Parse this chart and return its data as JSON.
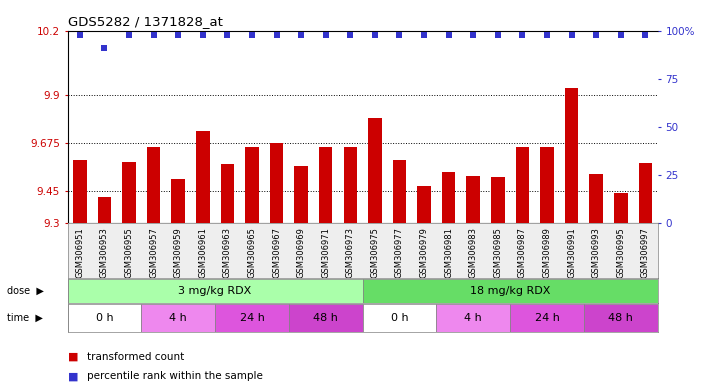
{
  "title": "GDS5282 / 1371828_at",
  "samples": [
    "GSM306951",
    "GSM306953",
    "GSM306955",
    "GSM306957",
    "GSM306959",
    "GSM306961",
    "GSM306963",
    "GSM306965",
    "GSM306967",
    "GSM306969",
    "GSM306971",
    "GSM306973",
    "GSM306975",
    "GSM306977",
    "GSM306979",
    "GSM306981",
    "GSM306983",
    "GSM306985",
    "GSM306987",
    "GSM306989",
    "GSM306991",
    "GSM306993",
    "GSM306995",
    "GSM306997"
  ],
  "bar_values": [
    9.595,
    9.42,
    9.585,
    9.655,
    9.505,
    9.73,
    9.575,
    9.655,
    9.675,
    9.565,
    9.655,
    9.655,
    9.79,
    9.595,
    9.47,
    9.54,
    9.52,
    9.515,
    9.655,
    9.655,
    9.93,
    9.53,
    9.44,
    9.58
  ],
  "percentile_values": [
    98,
    91,
    98,
    98,
    98,
    98,
    98,
    98,
    98,
    98,
    98,
    98,
    98,
    98,
    98,
    98,
    98,
    98,
    98,
    98,
    98,
    98,
    98,
    98
  ],
  "bar_color": "#cc0000",
  "dot_color": "#3333cc",
  "ylim": [
    9.3,
    10.2
  ],
  "yticks": [
    9.3,
    9.45,
    9.675,
    9.9,
    10.2
  ],
  "ytick_labels": [
    "9.3",
    "9.45",
    "9.675",
    "9.9",
    "10.2"
  ],
  "hlines": [
    9.45,
    9.675,
    9.9
  ],
  "right_ylim": [
    0,
    100
  ],
  "right_yticks": [
    0,
    25,
    50,
    75,
    100
  ],
  "right_ytick_labels": [
    "0",
    "25",
    "50",
    "75",
    "100%"
  ],
  "dose_labels": [
    {
      "text": "3 mg/kg RDX",
      "start": 0,
      "end": 12,
      "color": "#aaffaa"
    },
    {
      "text": "18 mg/kg RDX",
      "start": 12,
      "end": 24,
      "color": "#66dd66"
    }
  ],
  "time_labels": [
    {
      "text": "0 h",
      "start": 0,
      "end": 3,
      "color": "#ffffff"
    },
    {
      "text": "4 h",
      "start": 3,
      "end": 6,
      "color": "#ee88ee"
    },
    {
      "text": "24 h",
      "start": 6,
      "end": 9,
      "color": "#dd55dd"
    },
    {
      "text": "48 h",
      "start": 9,
      "end": 12,
      "color": "#cc44cc"
    },
    {
      "text": "0 h",
      "start": 12,
      "end": 15,
      "color": "#ffffff"
    },
    {
      "text": "4 h",
      "start": 15,
      "end": 18,
      "color": "#ee88ee"
    },
    {
      "text": "24 h",
      "start": 18,
      "end": 21,
      "color": "#dd55dd"
    },
    {
      "text": "48 h",
      "start": 21,
      "end": 24,
      "color": "#cc44cc"
    }
  ],
  "legend_items": [
    {
      "label": "transformed count",
      "color": "#cc0000"
    },
    {
      "label": "percentile rank within the sample",
      "color": "#3333cc"
    }
  ],
  "bar_width": 0.55,
  "plot_bg": "#eeeeee",
  "chart_bg": "#ffffff",
  "label_row_color": "#dddddd"
}
